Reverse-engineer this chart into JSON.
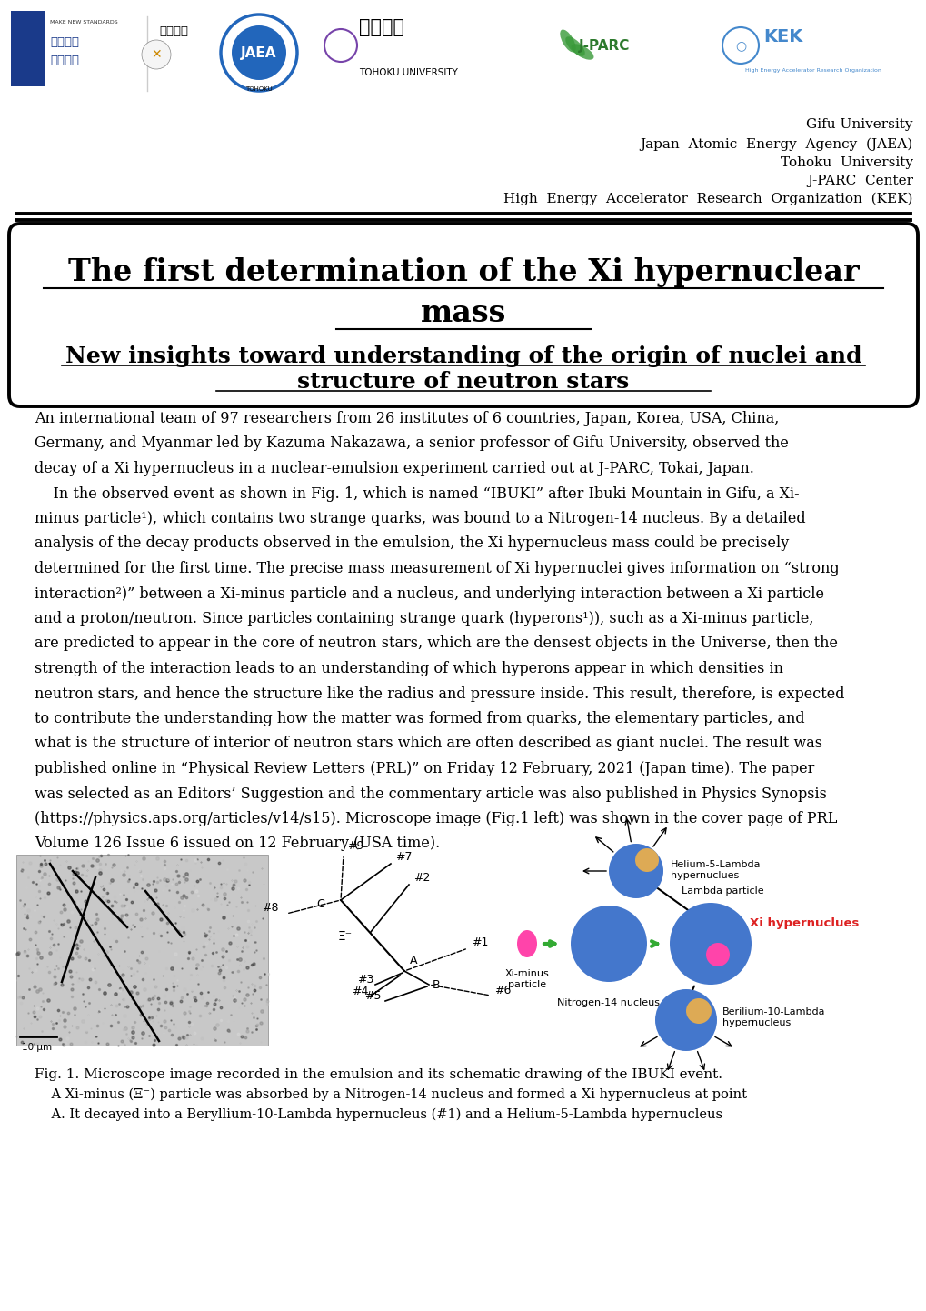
{
  "bg_color": "#ffffff",
  "title_line1": "The first determination of the Xi hypernuclear",
  "title_line2": "mass",
  "subtitle_line1": "New insights toward understanding of the origin of nuclei and",
  "subtitle_line2": "structure of neutron stars",
  "affiliations": [
    "Gifu University",
    "Japan  Atomic  Energy  Agency  (JAEA)",
    "Tohoku  University",
    "J-PARC  Center",
    "High  Energy  Accelerator  Research  Organization  (KEK)"
  ],
  "body_lines": [
    "An international team of 97 researchers from 26 institutes of 6 countries, Japan, Korea, USA, China,",
    "Germany, and Myanmar led by Kazuma Nakazawa, a senior professor of Gifu University, observed the",
    "decay of a Xi hypernucleus in a nuclear-emulsion experiment carried out at J-PARC, Tokai, Japan.",
    "    In the observed event as shown in Fig. 1, which is named “IBUKI” after Ibuki Mountain in Gifu, a Xi-",
    "minus particle¹), which contains two strange quarks, was bound to a Nitrogen-14 nucleus. By a detailed",
    "analysis of the decay products observed in the emulsion, the Xi hypernucleus mass could be precisely",
    "determined for the first time. The precise mass measurement of Xi hypernuclei gives information on “strong",
    "interaction²)” between a Xi-minus particle and a nucleus, and underlying interaction between a Xi particle",
    "and a proton/neutron. Since particles containing strange quark (hyperons¹)), such as a Xi-minus particle,",
    "are predicted to appear in the core of neutron stars, which are the densest objects in the Universe, then the",
    "strength of the interaction leads to an understanding of which hyperons appear in which densities in",
    "neutron stars, and hence the structure like the radius and pressure inside. This result, therefore, is expected",
    "to contribute the understanding how the matter was formed from quarks, the elementary particles, and",
    "what is the structure of interior of neutron stars which are often described as giant nuclei. The result was",
    "published online in “Physical Review Letters (PRL)” on Friday 12 February, 2021 (Japan time). The paper",
    "was selected as an Editors’ Suggestion and the commentary article was also published in Physics Synopsis",
    "(https://physics.aps.org/articles/v14/s15). Microscope image (Fig.1 left) was shown in the cover page of PRL",
    "Volume 126 Issue 6 issued on 12 February (USA time)."
  ],
  "fig_caption_lines": [
    "Fig. 1. Microscope image recorded in the emulsion and its schematic drawing of the IBUKI event.",
    "    A Xi-minus (Ξ⁻) particle was absorbed by a Nitrogen-14 nucleus and formed a Xi hypernucleus at point",
    "    A. It decayed into a Beryllium-10-Lambda hypernucleus (#1) and a Helium-5-Lambda hypernucleus"
  ]
}
